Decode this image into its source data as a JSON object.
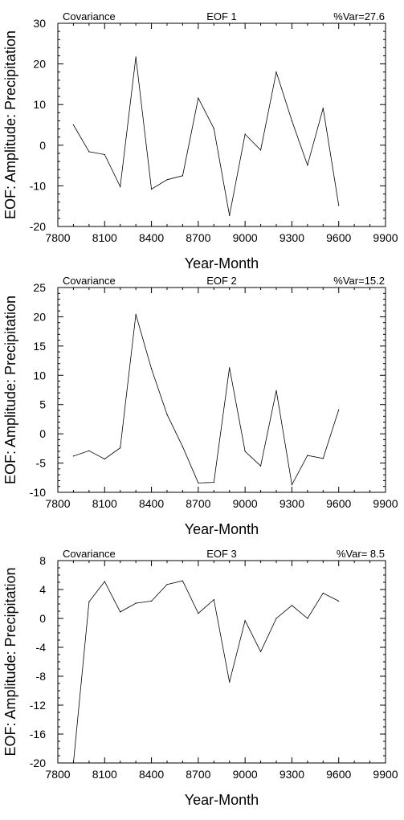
{
  "chart_data": [
    {
      "type": "line",
      "left_text": "Covariance",
      "center_text": "EOF 1",
      "right_text": "%Var=27.6",
      "xlabel": "Year-Month",
      "ylabel": "EOF: Amplitude: Precipitation",
      "xlim": [
        7800,
        9900
      ],
      "ylim": [
        -20,
        30
      ],
      "xticks": [
        7800,
        8100,
        8400,
        8700,
        9000,
        9300,
        9600,
        9900
      ],
      "yticks": [
        -20,
        -10,
        0,
        10,
        20,
        30
      ],
      "xminor": 100,
      "yminor": 2,
      "x": [
        7900,
        8000,
        8100,
        8200,
        8300,
        8400,
        8500,
        8600,
        8700,
        8800,
        8900,
        9000,
        9100,
        9200,
        9300,
        9400,
        9500,
        9600
      ],
      "series": [
        {
          "values": [
            5.0,
            -1.6,
            -2.3,
            -10.2,
            21.7,
            -10.8,
            -8.5,
            -7.5,
            11.6,
            4.1,
            -17.3,
            2.7,
            -1.2,
            18.0,
            6.0,
            -4.9,
            9.1,
            -14.8
          ]
        }
      ]
    },
    {
      "type": "line",
      "left_text": "Covariance",
      "center_text": "EOF 2",
      "right_text": "%Var=15.2",
      "xlabel": "Year-Month",
      "ylabel": "EOF: Amplitude: Precipitation",
      "xlim": [
        7800,
        9900
      ],
      "ylim": [
        -10,
        25
      ],
      "xticks": [
        7800,
        8100,
        8400,
        8700,
        9000,
        9300,
        9600,
        9900
      ],
      "yticks": [
        -10,
        -5,
        0,
        5,
        10,
        15,
        20,
        25
      ],
      "xminor": 100,
      "yminor": 1,
      "x": [
        7900,
        8000,
        8100,
        8200,
        8300,
        8400,
        8500,
        8600,
        8700,
        8800,
        8900,
        9000,
        9100,
        9200,
        9300,
        9400,
        9500,
        9600
      ],
      "series": [
        {
          "values": [
            -3.8,
            -2.9,
            -4.3,
            -2.4,
            20.4,
            11.1,
            3.3,
            -2.2,
            -8.4,
            -8.3,
            11.3,
            -3.0,
            -5.5,
            7.4,
            -8.7,
            -3.7,
            -4.2,
            4.1
          ]
        }
      ]
    },
    {
      "type": "line",
      "left_text": "Covariance",
      "center_text": "EOF 3",
      "right_text": "%Var= 8.5",
      "xlabel": "Year-Month",
      "ylabel": "EOF: Amplitude: Precipitation",
      "xlim": [
        7800,
        9900
      ],
      "ylim": [
        -20,
        8
      ],
      "xticks": [
        7800,
        8100,
        8400,
        8700,
        9000,
        9300,
        9600,
        9900
      ],
      "yticks": [
        -20,
        -16,
        -12,
        -8,
        -4,
        0,
        4,
        8
      ],
      "xminor": 100,
      "yminor": 1,
      "x": [
        7900,
        8000,
        8100,
        8200,
        8300,
        8400,
        8500,
        8600,
        8700,
        8800,
        8900,
        9000,
        9100,
        9200,
        9300,
        9400,
        9500,
        9600
      ],
      "series": [
        {
          "values": [
            -20.0,
            2.3,
            5.1,
            0.9,
            2.1,
            2.4,
            4.7,
            5.2,
            0.7,
            2.6,
            -8.8,
            -0.3,
            -4.6,
            0.0,
            1.8,
            0.0,
            3.5,
            2.4
          ]
        }
      ]
    }
  ]
}
